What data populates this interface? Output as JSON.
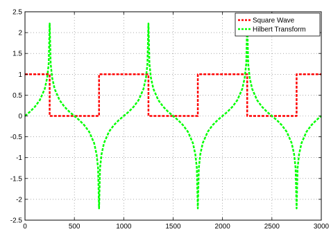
{
  "chart_data": {
    "type": "line",
    "title": "",
    "xlabel": "",
    "ylabel": "",
    "xlim": [
      0,
      3000
    ],
    "ylim": [
      -2.5,
      2.5
    ],
    "x_ticks": [
      0,
      500,
      1000,
      1500,
      2000,
      2500,
      3000
    ],
    "y_ticks": [
      -2.5,
      -2,
      -1.5,
      -1,
      -0.5,
      0,
      0.5,
      1,
      1.5,
      2,
      2.5
    ],
    "x_tick_labels": [
      "0",
      "500",
      "1000",
      "1500",
      "2000",
      "2500",
      "3000"
    ],
    "y_tick_labels": [
      "-2.5",
      "-2",
      "-1.5",
      "-1",
      "-0.5",
      "0",
      "0.5",
      "1",
      "1.5",
      "2",
      "2.5"
    ],
    "grid": true,
    "legend_position": "top-right",
    "series": [
      {
        "name": "Square Wave",
        "color": "#ff0000",
        "style": "dashed",
        "x": [
          0,
          250,
          250,
          750,
          750,
          1250,
          1250,
          1750,
          1750,
          2250,
          2250,
          2750,
          2750,
          3000
        ],
        "y": [
          1,
          1,
          0,
          0,
          1,
          1,
          0,
          0,
          1,
          1,
          0,
          0,
          1,
          1
        ]
      },
      {
        "name": "Hilbert Transform",
        "color": "#00ff00",
        "style": "dashed",
        "x": [
          0,
          50,
          100,
          150,
          200,
          225,
          240,
          250,
          260,
          275,
          300,
          350,
          400,
          450,
          500,
          550,
          600,
          650,
          700,
          725,
          740,
          750,
          760,
          775,
          800,
          850,
          900,
          950,
          1000,
          1050,
          1100,
          1150,
          1200,
          1225,
          1240,
          1250,
          1260,
          1275,
          1300,
          1350,
          1400,
          1450,
          1500,
          1550,
          1600,
          1650,
          1700,
          1725,
          1740,
          1750,
          1760,
          1775,
          1800,
          1850,
          1900,
          1950,
          2000,
          2050,
          2100,
          2150,
          2200,
          2225,
          2240,
          2250,
          2260,
          2275,
          2300,
          2350,
          2400,
          2450,
          2500,
          2550,
          2600,
          2650,
          2700,
          2725,
          2740,
          2750,
          2760,
          2775,
          2800,
          2850,
          2900,
          2950,
          3000
        ],
        "y": [
          0,
          0.1,
          0.22,
          0.38,
          0.65,
          0.92,
          1.25,
          2.22,
          1.25,
          0.92,
          0.65,
          0.38,
          0.22,
          0.1,
          0,
          -0.1,
          -0.22,
          -0.38,
          -0.65,
          -0.92,
          -1.25,
          -2.22,
          -1.25,
          -0.92,
          -0.65,
          -0.38,
          -0.22,
          -0.1,
          0,
          0.1,
          0.22,
          0.38,
          0.65,
          0.92,
          1.25,
          2.22,
          1.25,
          0.92,
          0.65,
          0.38,
          0.22,
          0.1,
          0,
          -0.1,
          -0.22,
          -0.38,
          -0.65,
          -0.92,
          -1.25,
          -2.22,
          -1.25,
          -0.92,
          -0.65,
          -0.38,
          -0.22,
          -0.1,
          0,
          0.1,
          0.22,
          0.38,
          0.65,
          0.92,
          1.25,
          2.22,
          1.25,
          0.92,
          0.65,
          0.38,
          0.22,
          0.1,
          0,
          -0.1,
          -0.22,
          -0.38,
          -0.65,
          -0.92,
          -1.25,
          -2.22,
          -1.25,
          -0.92,
          -0.65,
          -0.38,
          -0.22,
          -0.1,
          0
        ]
      }
    ]
  }
}
